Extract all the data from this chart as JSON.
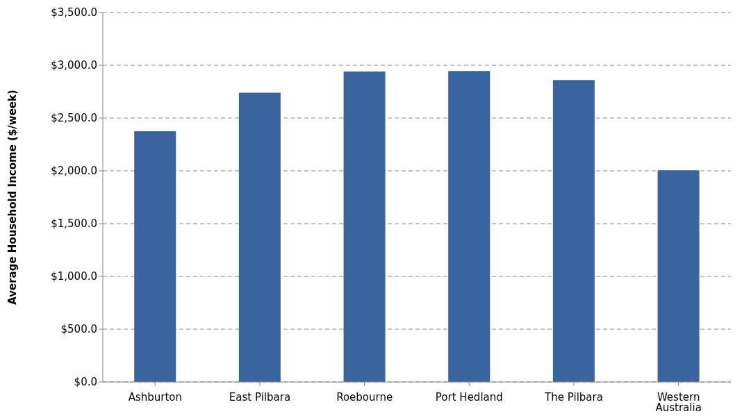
{
  "chart_data": {
    "type": "bar",
    "ylabel": "Average Household Income ($/week)",
    "categories": [
      "Ashburton",
      "East Pilbara",
      "Roebourne",
      "Port Hedland",
      "The Pilbara",
      "Western Australia"
    ],
    "values": [
      2375,
      2740,
      2940,
      2945,
      2860,
      2005
    ],
    "color": "#3a64a0",
    "ylim": [
      0,
      3500
    ],
    "yticks": [
      {
        "value": 0,
        "label": "$0.0"
      },
      {
        "value": 500,
        "label": "$500.0"
      },
      {
        "value": 1000,
        "label": "$1,000.0"
      },
      {
        "value": 1500,
        "label": "$1,500.0"
      },
      {
        "value": 2000,
        "label": "$2,000.0"
      },
      {
        "value": 2500,
        "label": "$2,500.0"
      },
      {
        "value": 3000,
        "label": "$3,000.0"
      },
      {
        "value": 3500,
        "label": "$3,500.0"
      }
    ],
    "grid": "y",
    "legend": false
  }
}
